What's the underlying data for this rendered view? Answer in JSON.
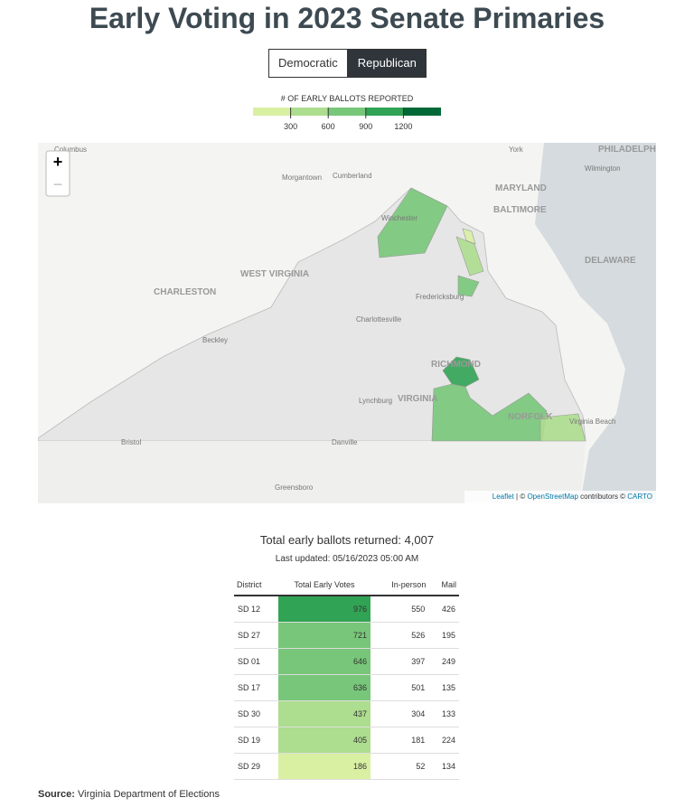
{
  "header": {
    "title": "Early Voting in 2023 Senate Primaries",
    "tabs": [
      "Democratic",
      "Republican"
    ],
    "active_tab": 1
  },
  "legend": {
    "title": "# OF EARLY BALLOTS REPORTED",
    "ticks": [
      300,
      600,
      900,
      1200
    ],
    "scale_lim": [
      0,
      1500
    ],
    "colors": [
      "#d9f0a3",
      "#addd8e",
      "#78c679",
      "#31a354",
      "#006837"
    ]
  },
  "map": {
    "zoom_in": "+",
    "zoom_out": "−",
    "labels": [
      "Columbus",
      "Morgantown",
      "Cumberland",
      "York",
      "PHILADELPHIA",
      "Wilmington",
      "MARYLAND",
      "BALTIMORE",
      "Winchester",
      "DELAWARE",
      "WEST VIRGINIA",
      "CHARLESTON",
      "Fredericksburg",
      "Charlottesville",
      "Beckley",
      "RICHMOND",
      "Lynchburg",
      "VIRGINIA",
      "NORFOLK",
      "Virginia Beach",
      "Bristol",
      "Danville",
      "Greensboro"
    ],
    "attribution": [
      "Leaflet",
      " | © ",
      "OpenStreetMap",
      " contributors © ",
      "CARTO"
    ]
  },
  "summary": {
    "total": "Total early ballots returned: 4,007",
    "updated": "Last updated: 05/16/2023 05:00 AM"
  },
  "table": {
    "columns": [
      "District",
      "Total Early Votes",
      "In-person",
      "Mail"
    ],
    "rows": [
      [
        "SD 12",
        976,
        550,
        426
      ],
      [
        "SD 27",
        721,
        526,
        195
      ],
      [
        "SD 01",
        646,
        397,
        249
      ],
      [
        "SD 17",
        636,
        501,
        135
      ],
      [
        "SD 30",
        437,
        304,
        133
      ],
      [
        "SD 19",
        405,
        181,
        224
      ],
      [
        "SD 29",
        186,
        52,
        134
      ]
    ]
  },
  "source": {
    "label": "Source:",
    "text": "Virginia Department of Elections"
  }
}
